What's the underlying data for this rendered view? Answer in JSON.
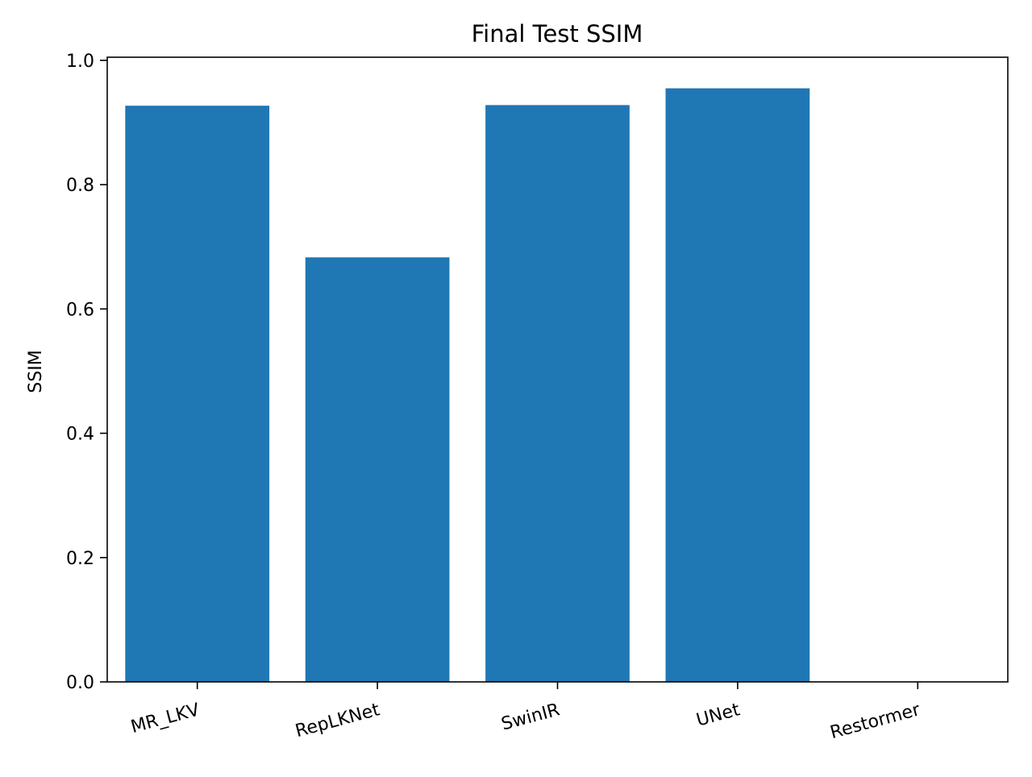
{
  "chart_data": {
    "type": "bar",
    "title": "Final Test SSIM",
    "xlabel": "",
    "ylabel": "SSIM",
    "categories": [
      "MR_LKV",
      "RepLKNet",
      "SwinIR",
      "UNet",
      "Restormer"
    ],
    "values": [
      0.927,
      0.683,
      0.928,
      0.955,
      0.0
    ],
    "ylim": [
      0,
      1.005
    ],
    "yticks": [
      "0.0",
      "0.2",
      "0.4",
      "0.6",
      "0.8",
      "1.0"
    ],
    "bar_color": "#1f77b4",
    "grid": false,
    "legend": "none"
  }
}
